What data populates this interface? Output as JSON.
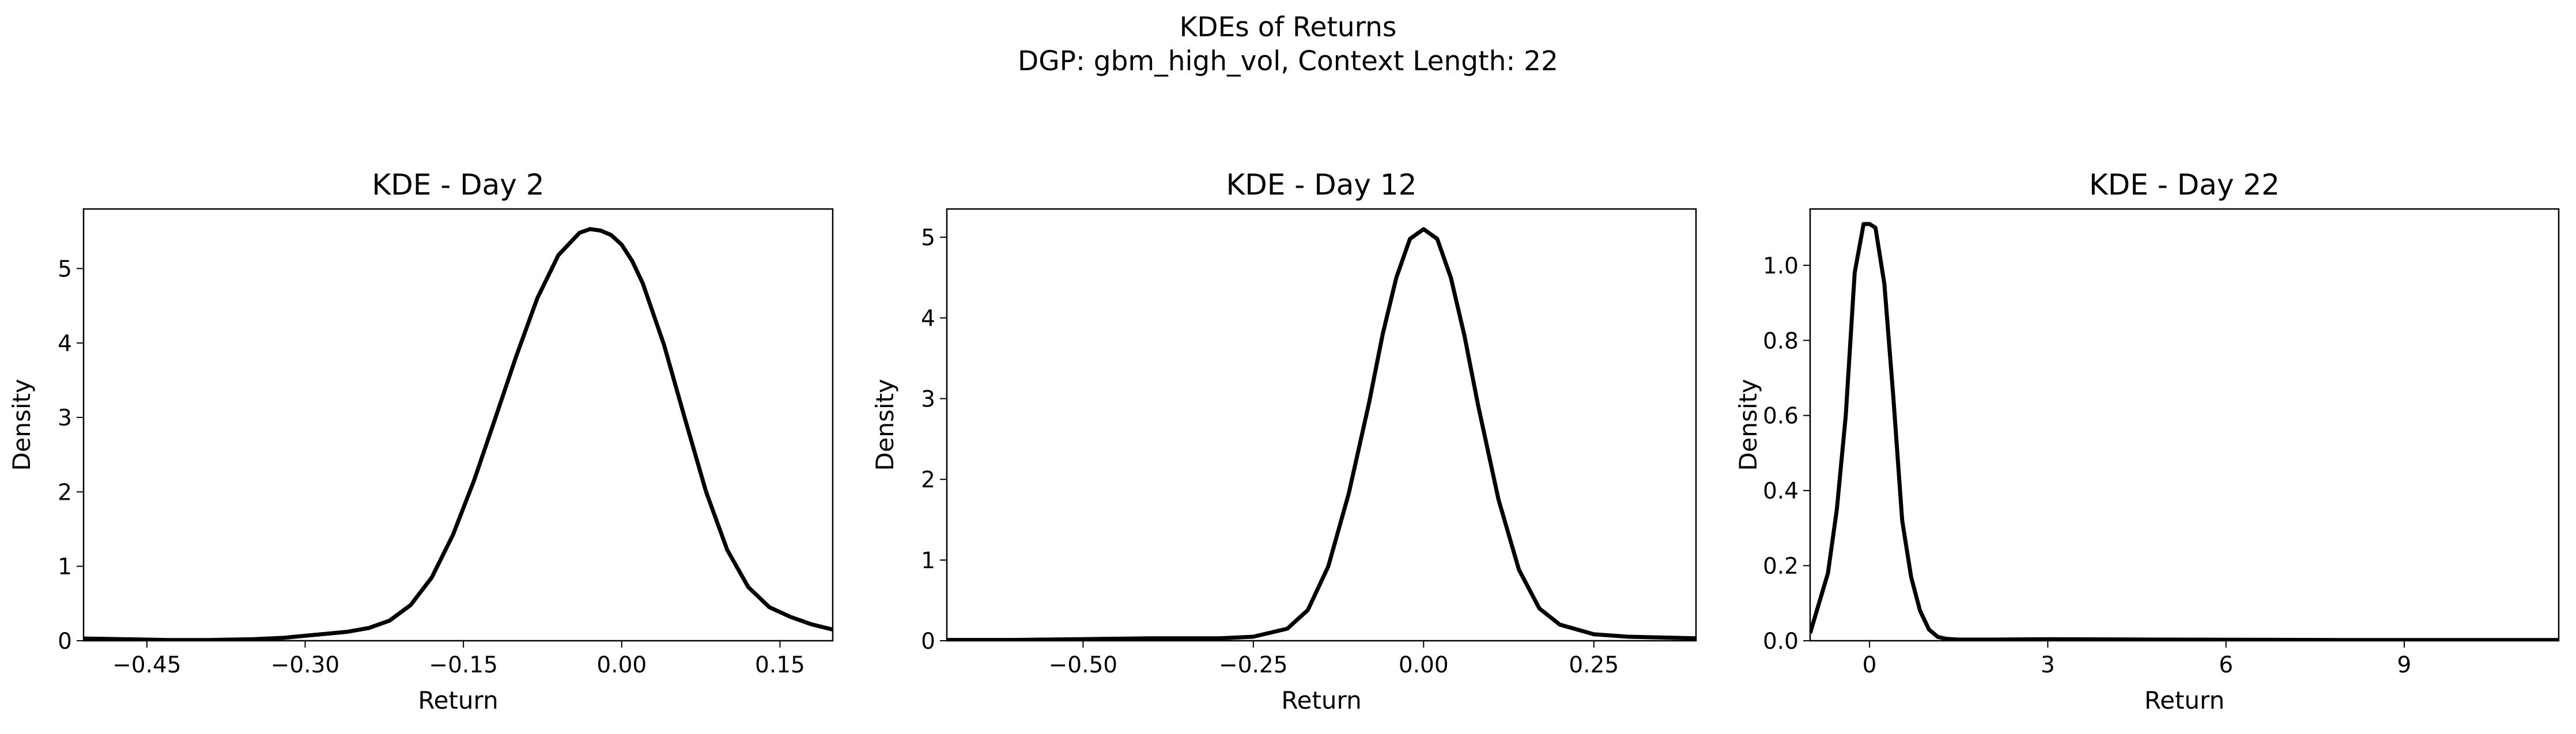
{
  "figure": {
    "title_line1": "KDEs of Returns",
    "title_line2": "DGP: gbm_high_vol, Context Length: 22"
  },
  "chart_data": [
    {
      "type": "line",
      "title": "KDE - Day 2",
      "xlabel": "Return",
      "ylabel": "Density",
      "xlim": [
        -0.51,
        0.2
      ],
      "ylim": [
        0,
        5.8
      ],
      "xticks": [
        -0.45,
        -0.3,
        -0.15,
        0.0,
        0.15
      ],
      "xtick_labels": [
        "−0.45",
        "−0.30",
        "−0.15",
        "0.00",
        "0.15"
      ],
      "yticks": [
        0,
        1,
        2,
        3,
        4,
        5
      ],
      "ytick_labels": [
        "0",
        "1",
        "2",
        "3",
        "4",
        "5"
      ],
      "grid": false,
      "line_color": "#000000",
      "x": [
        -0.51,
        -0.47,
        -0.43,
        -0.39,
        -0.35,
        -0.32,
        -0.29,
        -0.26,
        -0.24,
        -0.22,
        -0.2,
        -0.18,
        -0.16,
        -0.14,
        -0.12,
        -0.1,
        -0.08,
        -0.06,
        -0.04,
        -0.03,
        -0.02,
        -0.01,
        0.0,
        0.01,
        0.02,
        0.04,
        0.06,
        0.08,
        0.1,
        0.12,
        0.14,
        0.16,
        0.18,
        0.2
      ],
      "y": [
        0.03,
        0.02,
        0.01,
        0.01,
        0.02,
        0.04,
        0.08,
        0.12,
        0.17,
        0.27,
        0.48,
        0.85,
        1.42,
        2.15,
        2.98,
        3.82,
        4.6,
        5.18,
        5.48,
        5.53,
        5.51,
        5.45,
        5.32,
        5.1,
        4.8,
        3.98,
        2.98,
        2.0,
        1.22,
        0.72,
        0.45,
        0.32,
        0.22,
        0.15
      ]
    },
    {
      "type": "line",
      "title": "KDE - Day 12",
      "xlabel": "Return",
      "ylabel": "Density",
      "xlim": [
        -0.7,
        0.4
      ],
      "ylim": [
        0,
        5.35
      ],
      "xticks": [
        -0.5,
        -0.25,
        0.0,
        0.25
      ],
      "xtick_labels": [
        "−0.50",
        "−0.25",
        "0.00",
        "0.25"
      ],
      "yticks": [
        0,
        1,
        2,
        3,
        4,
        5
      ],
      "ytick_labels": [
        "0",
        "1",
        "2",
        "3",
        "4",
        "5"
      ],
      "grid": false,
      "line_color": "#000000",
      "x": [
        -0.7,
        -0.6,
        -0.5,
        -0.4,
        -0.3,
        -0.25,
        -0.2,
        -0.17,
        -0.14,
        -0.11,
        -0.08,
        -0.06,
        -0.04,
        -0.02,
        0.0,
        0.02,
        0.04,
        0.06,
        0.08,
        0.11,
        0.14,
        0.17,
        0.2,
        0.25,
        0.3,
        0.35,
        0.4
      ],
      "y": [
        0.01,
        0.01,
        0.02,
        0.03,
        0.03,
        0.05,
        0.15,
        0.38,
        0.92,
        1.82,
        2.95,
        3.8,
        4.5,
        4.98,
        5.1,
        4.98,
        4.5,
        3.78,
        2.92,
        1.75,
        0.88,
        0.4,
        0.2,
        0.08,
        0.05,
        0.04,
        0.03
      ]
    },
    {
      "type": "line",
      "title": "KDE - Day 22",
      "xlabel": "Return",
      "ylabel": "Density",
      "xlim": [
        -1.0,
        11.6
      ],
      "ylim": [
        0,
        1.15
      ],
      "xticks": [
        0,
        3,
        6,
        9
      ],
      "xtick_labels": [
        "0",
        "3",
        "6",
        "9"
      ],
      "yticks": [
        0.0,
        0.2,
        0.4,
        0.6,
        0.8,
        1.0
      ],
      "ytick_labels": [
        "0.0",
        "0.2",
        "0.4",
        "0.6",
        "0.8",
        "1.0"
      ],
      "grid": false,
      "line_color": "#000000",
      "x": [
        -1.0,
        -0.85,
        -0.7,
        -0.55,
        -0.4,
        -0.25,
        -0.1,
        0.0,
        0.1,
        0.25,
        0.4,
        0.55,
        0.7,
        0.85,
        1.0,
        1.15,
        1.3,
        1.5,
        2.0,
        3.0,
        5.0,
        8.0,
        11.6
      ],
      "y": [
        0.02,
        0.1,
        0.18,
        0.35,
        0.6,
        0.98,
        1.11,
        1.11,
        1.1,
        0.95,
        0.65,
        0.32,
        0.17,
        0.08,
        0.03,
        0.01,
        0.005,
        0.003,
        0.003,
        0.004,
        0.003,
        0.002,
        0.002
      ]
    }
  ]
}
